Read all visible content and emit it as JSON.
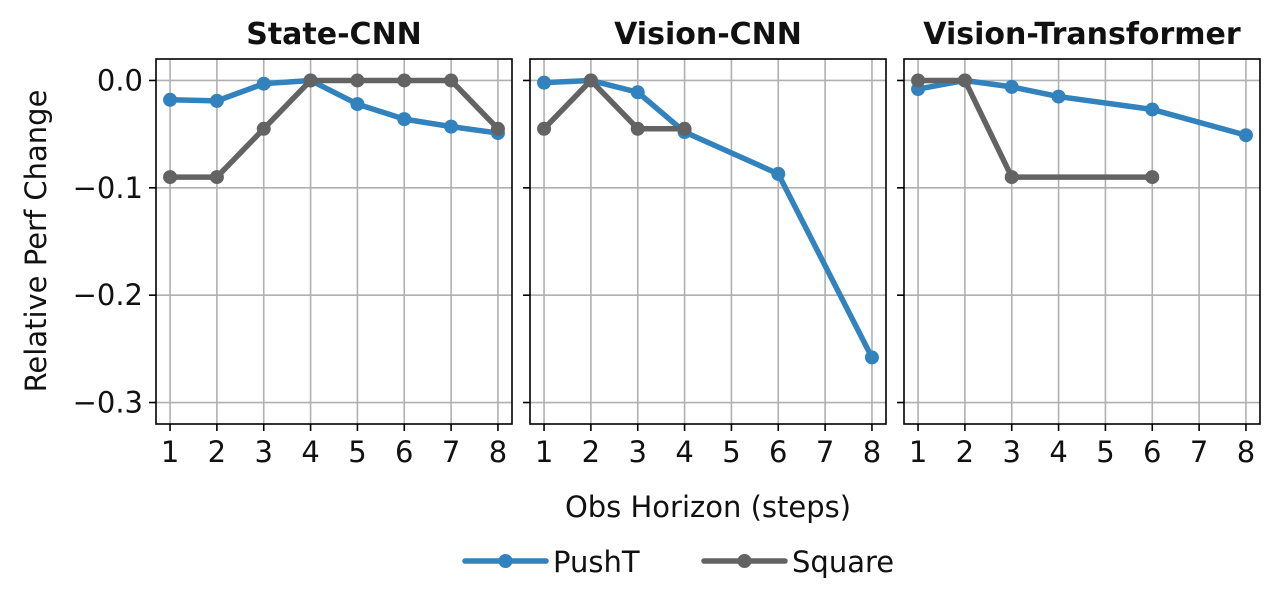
{
  "chart_data": {
    "type": "line",
    "ylabel": "Relative Perf Change",
    "xlabel": "Obs Horizon (steps)",
    "xlim": [
      0.7,
      8.3
    ],
    "ylim": [
      -0.32,
      0.02
    ],
    "x_ticks": [
      1,
      2,
      3,
      4,
      5,
      6,
      7,
      8
    ],
    "y_ticks": [
      0.0,
      -0.1,
      -0.2,
      -0.3
    ],
    "y_tick_labels": [
      "0.0",
      "−0.1",
      "−0.2",
      "−0.3"
    ],
    "grid": true,
    "legend_position": "bottom-center",
    "series_styles": [
      {
        "name": "PushT",
        "color": "#3182bd"
      },
      {
        "name": "Square",
        "color": "#636363"
      }
    ],
    "panels": [
      {
        "title": "State-CNN",
        "series": [
          {
            "name": "PushT",
            "x": [
              1,
              2,
              3,
              4,
              5,
              6,
              7,
              8
            ],
            "y": [
              -0.018,
              -0.019,
              -0.003,
              0.0,
              -0.022,
              -0.036,
              -0.043,
              -0.049
            ]
          },
          {
            "name": "Square",
            "x": [
              1,
              2,
              3,
              4,
              5,
              6,
              7,
              8
            ],
            "y": [
              -0.09,
              -0.09,
              -0.045,
              0.0,
              0.0,
              0.0,
              0.0,
              -0.045
            ]
          }
        ]
      },
      {
        "title": "Vision-CNN",
        "series": [
          {
            "name": "PushT",
            "x": [
              1,
              2,
              3,
              4,
              6,
              8
            ],
            "y": [
              -0.002,
              0.0,
              -0.011,
              -0.048,
              -0.087,
              -0.258
            ]
          },
          {
            "name": "Square",
            "x": [
              1,
              2,
              3,
              4
            ],
            "y": [
              -0.045,
              0.0,
              -0.045,
              -0.045
            ]
          }
        ]
      },
      {
        "title": "Vision-Transformer",
        "series": [
          {
            "name": "PushT",
            "x": [
              1,
              2,
              3,
              4,
              6,
              8
            ],
            "y": [
              -0.008,
              0.0,
              -0.006,
              -0.015,
              -0.027,
              -0.051
            ]
          },
          {
            "name": "Square",
            "x": [
              1,
              2,
              3,
              6
            ],
            "y": [
              0.0,
              0.0,
              -0.09,
              -0.09
            ]
          }
        ]
      }
    ]
  }
}
